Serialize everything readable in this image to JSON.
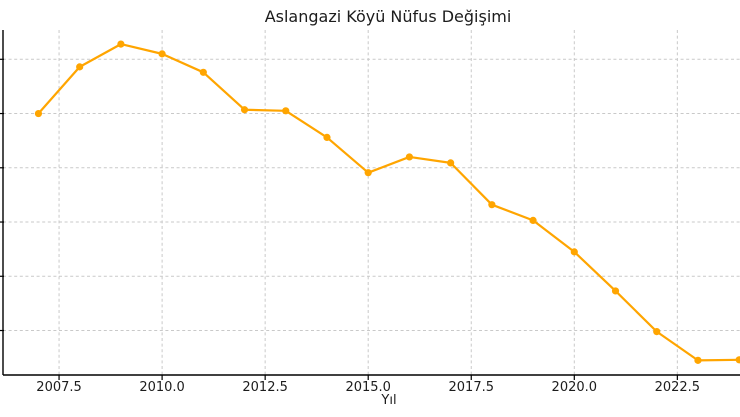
{
  "chart_data": {
    "type": "line",
    "title": "Aslangazi Köyü Nüfus Değişimi",
    "xlabel": "Yıl",
    "ylabel": "",
    "x": [
      2007,
      2008,
      2009,
      2010,
      2011,
      2012,
      2013,
      2014,
      2015,
      2016,
      2017,
      2018,
      2019,
      2020,
      2021,
      2022,
      2023,
      2024
    ],
    "series": [
      {
        "name": "",
        "color": "#FFA500",
        "marker": "circle",
        "values_gridunits": [
          4.0,
          4.86,
          5.28,
          5.1,
          4.76,
          4.07,
          4.05,
          3.56,
          2.91,
          3.2,
          3.09,
          2.32,
          2.03,
          1.45,
          0.73,
          -0.02,
          -0.55,
          -0.54
        ]
      }
    ],
    "x_tick_labels": [
      "2007.5",
      "2010.0",
      "2012.5",
      "2015.0",
      "2017.5",
      "2020.0",
      "2022.5"
    ],
    "x_tick_values": [
      2007.5,
      2010.0,
      2012.5,
      2015.0,
      2017.5,
      2020.0,
      2022.5
    ],
    "y_gridline_units": [
      0,
      1,
      2,
      3,
      4,
      5
    ],
    "y_tick_labels_visible": false,
    "value_scale_note": "Y-axis tick labels are cropped outside the left edge of the visible image; series values are estimated in gridline units (0 = lowest visible horizontal gridline, 1 = one gridline spacing).",
    "xlim": [
      2006.14,
      2024.02
    ],
    "ylim_gridunits": [
      -0.82,
      5.54
    ],
    "grid": true,
    "legend": "none",
    "colors": {
      "line": "#FFA500",
      "gridline": "#c9c9c9",
      "axis": "#000000",
      "text": "#1c1c1c",
      "background": "#ffffff"
    }
  }
}
